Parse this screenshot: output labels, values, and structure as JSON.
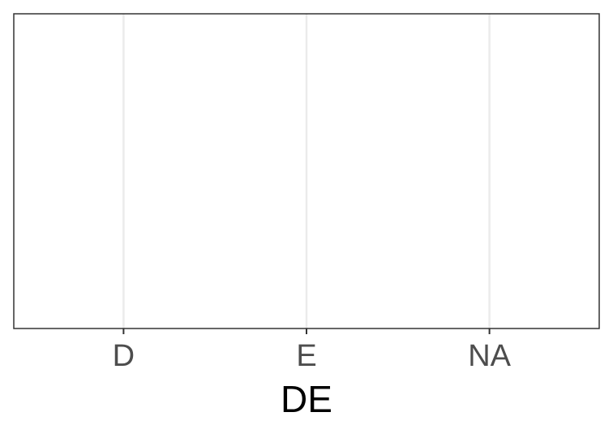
{
  "chart_data": {
    "type": "bar",
    "categories": [
      "D",
      "E",
      "NA"
    ],
    "x_label": "DE",
    "grid": true
  }
}
